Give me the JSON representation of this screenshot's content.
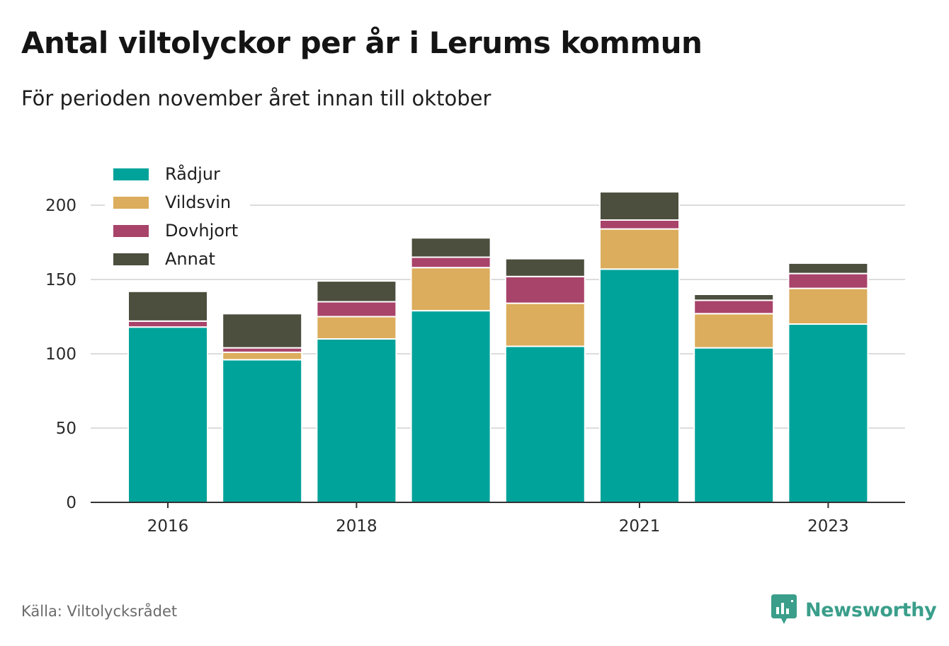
{
  "header": {
    "title": "Antal viltolyckor per år i Lerums kommun",
    "subtitle": "För perioden november året innan till oktober"
  },
  "footer": {
    "source": "Källa: Viltolycksrådet",
    "brand": "Newsworthy",
    "brand_color": "#3a9e8a"
  },
  "chart_data": {
    "type": "bar",
    "stacked": true,
    "categories": [
      "2016",
      "2017",
      "2018",
      "2019",
      "2020",
      "2021",
      "2022",
      "2023"
    ],
    "x_tick_labels": [
      "2016",
      "2018",
      "2021",
      "2023"
    ],
    "series": [
      {
        "name": "Rådjur",
        "color": "#00a39a",
        "values": [
          118,
          96,
          110,
          129,
          105,
          157,
          104,
          120
        ]
      },
      {
        "name": "Vildsvin",
        "color": "#dbad5c",
        "values": [
          0,
          5,
          15,
          29,
          29,
          27,
          23,
          24
        ]
      },
      {
        "name": "Dovhjort",
        "color": "#a8436a",
        "values": [
          4,
          3,
          10,
          7,
          18,
          6,
          9,
          10
        ]
      },
      {
        "name": "Annat",
        "color": "#4c4e3e",
        "values": [
          20,
          23,
          14,
          13,
          12,
          19,
          4,
          7
        ]
      }
    ],
    "ylim": [
      0,
      215
    ],
    "y_ticks": [
      0,
      50,
      100,
      150,
      200
    ],
    "grid": true,
    "legend_position": "top-left"
  }
}
